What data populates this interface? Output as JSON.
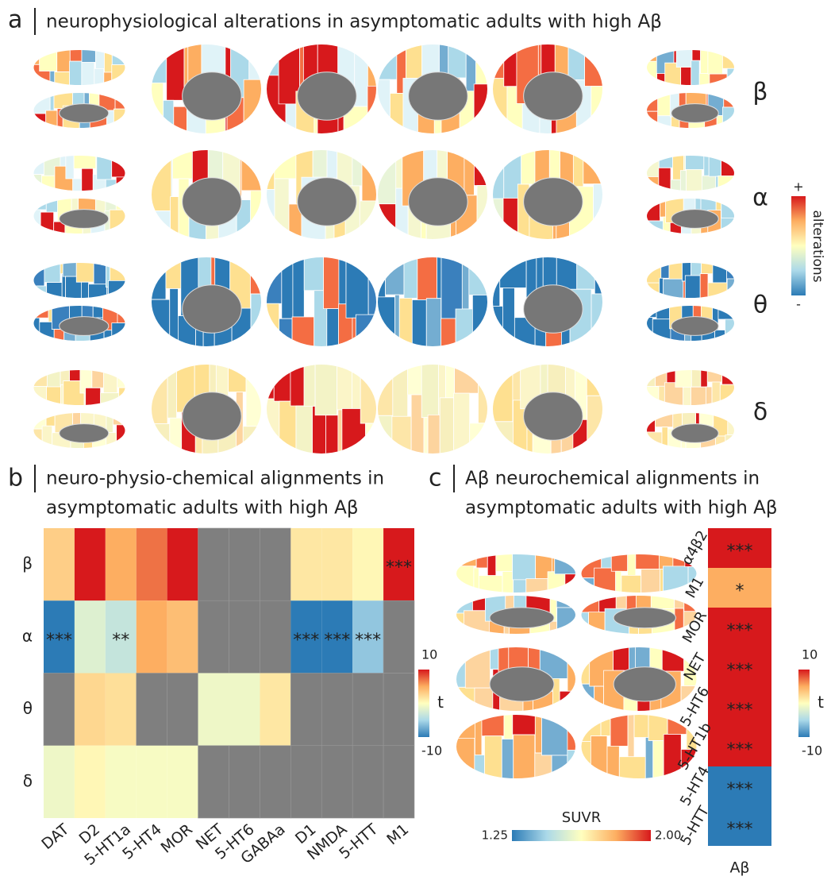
{
  "chart_data": [
    {
      "type": "brainmap",
      "panel_label": "a",
      "title": "neurophysiological alterations in asymptomatic adults with high Aβ",
      "rows": [
        "β",
        "α",
        "θ",
        "δ"
      ],
      "colorbar": {
        "label": "alterations",
        "high_label": "+",
        "low_label": "-"
      }
    },
    {
      "type": "heatmap",
      "panel_label": "b",
      "title": [
        "neuro-physio-chemical alignments in",
        "asymptomatic adults with high Aβ"
      ],
      "rows": [
        "β",
        "α",
        "θ",
        "δ"
      ],
      "categories": [
        "DAT",
        "D2",
        "5-HT1a",
        "5-HT4",
        "MOR",
        "NET",
        "5-HT6",
        "GABAa",
        "D1",
        "NMDA",
        "5-HTT",
        "M1"
      ],
      "values": [
        [
          3,
          10,
          5,
          7,
          10,
          null,
          null,
          null,
          1.5,
          1.5,
          0.5,
          10
        ],
        [
          -10,
          -2,
          -3.5,
          5,
          4,
          null,
          null,
          null,
          -10,
          -10,
          -6,
          null
        ],
        [
          null,
          2.5,
          2,
          null,
          null,
          -1,
          -1,
          1.5,
          null,
          null,
          null,
          null
        ],
        [
          -1,
          0.5,
          -0.5,
          -0.5,
          -0.5,
          null,
          null,
          null,
          null,
          null,
          null,
          null
        ]
      ],
      "annotations": [
        [
          null,
          null,
          null,
          null,
          null,
          null,
          null,
          null,
          null,
          null,
          null,
          "***"
        ],
        [
          "***",
          null,
          "**",
          null,
          null,
          null,
          null,
          null,
          "***",
          "***",
          "***",
          null
        ],
        [
          null,
          null,
          null,
          null,
          null,
          null,
          null,
          null,
          null,
          null,
          null,
          null
        ],
        [
          null,
          null,
          null,
          null,
          null,
          null,
          null,
          null,
          null,
          null,
          null,
          null
        ]
      ],
      "zlim": [
        -10,
        10
      ],
      "zticks": [
        10,
        -10
      ],
      "colorbar_label": "t"
    },
    {
      "type": "brainmap",
      "panel_label": "c",
      "title": [
        "Aβ neurochemical alignments in",
        "asymptomatic adults with high Aβ"
      ],
      "colorbar": {
        "label": "SUVR",
        "clim": [
          1.25,
          2.0
        ],
        "cticks": [
          1.25,
          {
            "value": 2.0,
            "label": "2.00"
          }
        ]
      }
    },
    {
      "type": "heatmap",
      "rows": [
        "α4β2",
        "M1",
        "MOR",
        "NET",
        "5-HT6",
        "5-HT1b",
        "5-HT4",
        "5-HTT"
      ],
      "categories": [
        "Aβ"
      ],
      "values": [
        [
          10
        ],
        [
          5
        ],
        [
          10
        ],
        [
          10
        ],
        [
          10
        ],
        [
          10
        ],
        [
          -10
        ],
        [
          -10
        ]
      ],
      "annotations": [
        [
          "***"
        ],
        [
          "*"
        ],
        [
          "***"
        ],
        [
          "***"
        ],
        [
          "***"
        ],
        [
          "***"
        ],
        [
          "***"
        ],
        [
          "***"
        ]
      ],
      "zlim": [
        -10,
        10
      ],
      "zticks": [
        10,
        -10
      ],
      "colorbar_label": "t"
    }
  ]
}
